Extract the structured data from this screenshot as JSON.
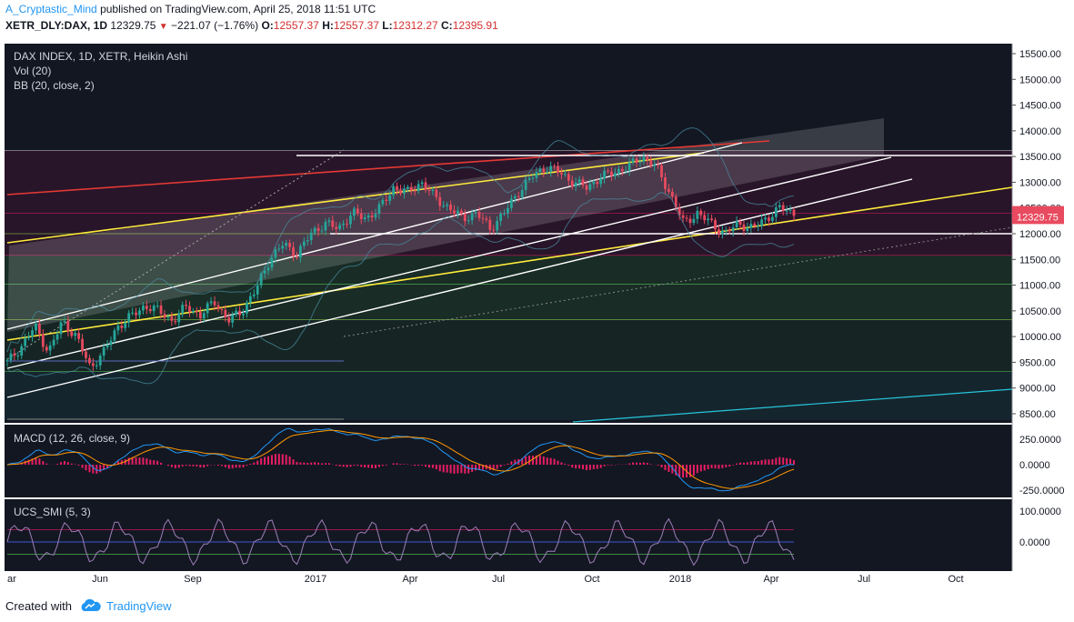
{
  "header": {
    "author": "A_Cryptastic_Mind",
    "published": "published on TradingView.com, April 25, 2018 11:51 UTC",
    "symbol": "XETR_DLY:DAX, 1D",
    "last": "12329.75",
    "change": "−221.07 (−1.76%)",
    "ohlc": {
      "o_label": "O:",
      "o": "12557.37",
      "h_label": "H:",
      "h": "12557.37",
      "l_label": "L:",
      "l": "12312.27",
      "c_label": "C:",
      "c": "12395.91"
    }
  },
  "legend": {
    "title": "DAX INDEX, 1D, XETR, Heikin Ashi",
    "vol": "Vol (20)",
    "bb": "BB (20, close, 2)",
    "macd": "MACD (12, 26, close, 9)",
    "smi": "UCS_SMI (5, 3)"
  },
  "chart_data": {
    "type": "candlestick",
    "price_axis": {
      "ticks": [
        "15500.00",
        "15000.00",
        "14500.00",
        "14000.00",
        "13500.00",
        "13000.00",
        "12500.00",
        "12000.00",
        "11500.00",
        "11000.00",
        "10500.00",
        "10000.00",
        "9500.00",
        "9000.00",
        "8500.00"
      ],
      "tick_values": [
        15500,
        15000,
        14500,
        14000,
        13500,
        13000,
        12500,
        12000,
        11500,
        11000,
        10500,
        10000,
        9500,
        9000,
        8500
      ],
      "badges": [
        {
          "label": "12395.91",
          "value": 12395.91,
          "color": "#e84a5f"
        },
        {
          "label": "12329.75",
          "value": 12329.75,
          "color": "#e84a5f"
        }
      ]
    },
    "macd_axis": {
      "ticks": [
        "250.0000",
        "0.0000",
        "-250.0000"
      ],
      "tick_values": [
        250,
        0,
        -250
      ]
    },
    "smi_axis": {
      "ticks": [
        "100.0000",
        "0.0000"
      ],
      "tick_values": [
        100,
        0
      ]
    },
    "time_axis": {
      "labels": [
        "ar",
        "Jun",
        "Sep",
        "2017",
        "Apr",
        "Jul",
        "Oct",
        "2018",
        "Apr",
        "Jul",
        "Oct"
      ]
    },
    "close_anchors": [
      9500,
      9800,
      10200,
      9700,
      10300,
      10000,
      9400,
      9700,
      10200,
      10400,
      10600,
      10500,
      10300,
      10600,
      10400,
      10700,
      10300,
      10500,
      10900,
      11500,
      11800,
      11600,
      12000,
      12200,
      12100,
      12400,
      12300,
      12500,
      12900,
      12800,
      13000,
      12700,
      12500,
      12300,
      12400,
      12100,
      12400,
      12800,
      13100,
      13300,
      13200,
      13000,
      12900,
      13100,
      13200,
      13300,
      13500,
      13300,
      12800,
      12200,
      12400,
      12200,
      12000,
      12200,
      12100,
      12300,
      12500,
      12395.91
    ],
    "colors": {
      "up": "#26a69a",
      "down": "#e84a5f",
      "macd_line": "#2196f3",
      "signal_line": "#ff9800",
      "histogram": "#e91e63",
      "smi_line": "#9c7fb8"
    }
  },
  "footer": {
    "created_with": "Created with",
    "brand": "TradingView",
    "logo_icon": "tradingview-cloud-icon"
  }
}
